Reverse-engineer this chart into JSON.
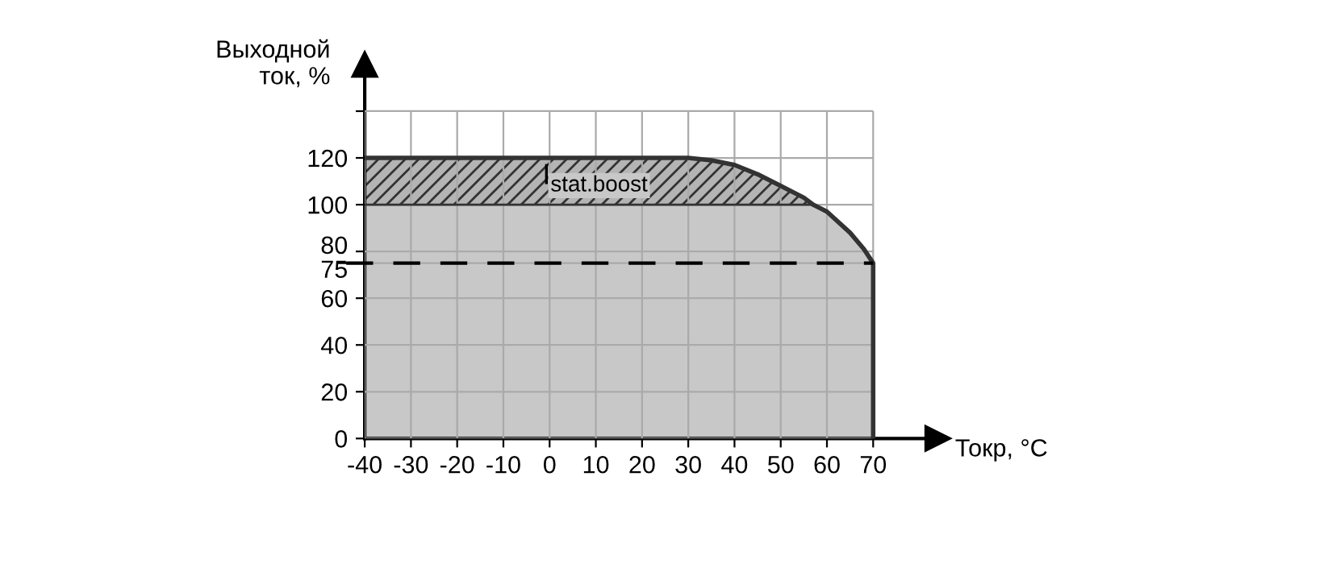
{
  "chart_data": {
    "type": "area",
    "stacked": true,
    "ylabel": "Выходной\nток, %",
    "xlabel": "Токр, °C",
    "x": [
      -40,
      30,
      35,
      40,
      45,
      50,
      55,
      57,
      60,
      65,
      68,
      70,
      70
    ],
    "series": [
      {
        "color": "#c8c8c8",
        "values": [
          100,
          100,
          100,
          100,
          100,
          100,
          100,
          100,
          97,
          88,
          81,
          75,
          0
        ]
      },
      {
        "color": "#b4b4b4",
        "values": [
          20,
          20,
          19,
          17,
          13,
          8,
          3,
          0,
          0,
          0,
          0,
          0,
          0
        ]
      }
    ],
    "xlim": [
      -40,
      84
    ],
    "ylim": [
      0,
      160
    ],
    "xticks": [
      -40,
      -30,
      -20,
      -10,
      0,
      10,
      20,
      30,
      40,
      50,
      60,
      70
    ],
    "yticks": [
      0,
      20,
      40,
      60,
      {
        "value": 75,
        "label": "75"
      },
      80,
      100,
      120,
      {
        "value": 140,
        "label": null
      }
    ],
    "grid": true,
    "ref_lines": [
      {
        "axis": "y",
        "value": 75,
        "label": null,
        "line_style": "dashed",
        "color": "#000000"
      }
    ],
    "annotations": [
      "I$_{stat.boost}$"
    ]
  }
}
